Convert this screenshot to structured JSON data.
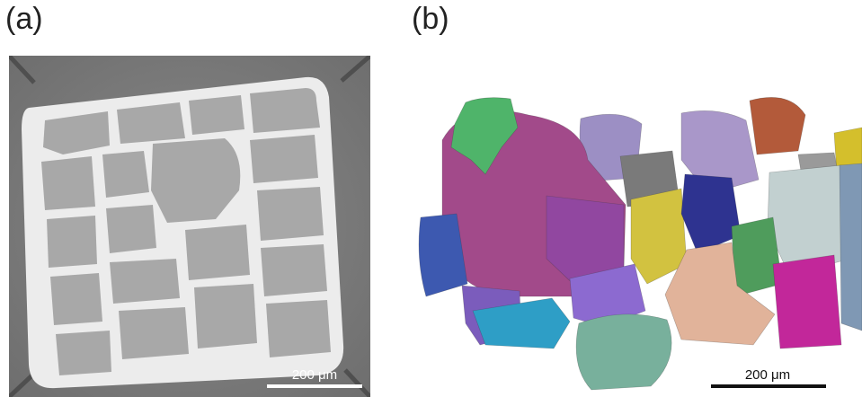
{
  "panels": [
    {
      "label": "(a)",
      "scale_bar": "200 μm"
    },
    {
      "label": "(b)",
      "scale_bar": "200 μm"
    }
  ],
  "colors": {
    "xray_background": "#7d7d7d",
    "grain_fill": "#a6a6a6",
    "boundary_network": "#e8e8e8"
  }
}
